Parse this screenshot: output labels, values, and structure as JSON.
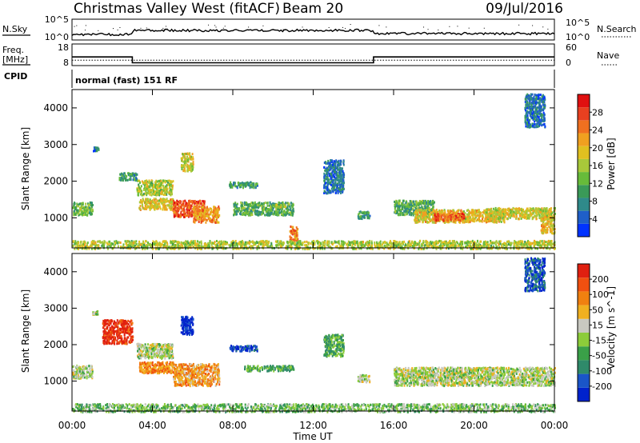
{
  "header": {
    "station": "Christmas Valley West (fitACF)",
    "beam": "Beam 20",
    "date": "09/Jul/2016"
  },
  "sky_panel": {
    "left_label": "N.Sky",
    "right_label": "N.Search",
    "left_ticks": [
      "10^5",
      "10^0"
    ],
    "right_ticks": [
      "10^5",
      "10^0"
    ]
  },
  "freq_panel": {
    "left_label_1": "Freq.",
    "left_label_2": "[MHz]",
    "right_label": "Nave",
    "left_ticks": [
      "18",
      "8"
    ],
    "right_ticks": [
      "60",
      "0"
    ],
    "freq_series": [
      {
        "start_hour": 0,
        "end_hour": 3.0,
        "value": 12.0
      },
      {
        "start_hour": 3.0,
        "end_hour": 15.0,
        "value": 9.3
      },
      {
        "start_hour": 15.0,
        "end_hour": 24.0,
        "value": 12.0
      }
    ],
    "nave_level": 15,
    "ylim_freq": [
      8,
      18
    ],
    "ylim_nave": [
      0,
      60
    ]
  },
  "cpid": {
    "label": "CPID",
    "mode": "normal (fast) 151 RF"
  },
  "chart_data": [
    {
      "type": "heatmap",
      "name": "Power",
      "ylabel": "Slant Range [km]",
      "xlabel": "Time UT",
      "xlim_hours": [
        0,
        24
      ],
      "ylim": [
        180,
        4500
      ],
      "x_tick_labels": [
        "00:00",
        "04:00",
        "08:00",
        "12:00",
        "16:00",
        "20:00",
        "00:00"
      ],
      "y_ticks": [
        1000,
        2000,
        3000,
        4000
      ],
      "colorbar": {
        "label": "Power [dB]",
        "ticks": [
          "28",
          "24",
          "20",
          "16",
          "12",
          "8",
          "4"
        ],
        "colors": [
          "#0033ff",
          "#1f5fc8",
          "#2f8a8a",
          "#3a9a58",
          "#67bb3a",
          "#a8c83a",
          "#e0c020",
          "#f0a020",
          "#f07020",
          "#e84020",
          "#e01010"
        ]
      },
      "regions": [
        {
          "t": [
            0.0,
            1.0
          ],
          "r": [
            1100,
            1450
          ],
          "level": 0.4
        },
        {
          "t": [
            1.0,
            1.3
          ],
          "r": [
            2850,
            2950
          ],
          "level": 0.2
        },
        {
          "t": [
            2.3,
            3.2
          ],
          "r": [
            2050,
            2250
          ],
          "level": 0.3
        },
        {
          "t": [
            3.2,
            5.0
          ],
          "r": [
            1650,
            2050
          ],
          "level": 0.5
        },
        {
          "t": [
            3.3,
            5.0
          ],
          "r": [
            1250,
            1550
          ],
          "level": 0.6
        },
        {
          "t": [
            5.0,
            6.6
          ],
          "r": [
            1050,
            1500
          ],
          "level": 0.85
        },
        {
          "t": [
            6.0,
            7.3
          ],
          "r": [
            900,
            1350
          ],
          "level": 0.7
        },
        {
          "t": [
            5.4,
            6.0
          ],
          "r": [
            2300,
            2800
          ],
          "level": 0.55
        },
        {
          "t": [
            7.8,
            9.2
          ],
          "r": [
            1850,
            2000
          ],
          "level": 0.3
        },
        {
          "t": [
            8.0,
            11.0
          ],
          "r": [
            1100,
            1450
          ],
          "level": 0.35
        },
        {
          "t": [
            9.8,
            10.6
          ],
          "r": [
            1300,
            1400
          ],
          "level": 0.5
        },
        {
          "t": [
            10.8,
            11.2
          ],
          "r": [
            380,
            800
          ],
          "level": 0.75
        },
        {
          "t": [
            14.2,
            14.8
          ],
          "r": [
            1000,
            1200
          ],
          "level": 0.3
        },
        {
          "t": [
            12.5,
            13.5
          ],
          "r": [
            1700,
            2600
          ],
          "level": 0.2
        },
        {
          "t": [
            16.0,
            18.0
          ],
          "r": [
            1100,
            1500
          ],
          "level": 0.35
        },
        {
          "t": [
            17.0,
            21.5
          ],
          "r": [
            900,
            1250
          ],
          "level": 0.6
        },
        {
          "t": [
            18.0,
            19.5
          ],
          "r": [
            950,
            1150
          ],
          "level": 0.8
        },
        {
          "t": [
            20.5,
            24.0
          ],
          "r": [
            1000,
            1300
          ],
          "level": 0.55
        },
        {
          "t": [
            22.5,
            23.5
          ],
          "r": [
            3500,
            4400
          ],
          "level": 0.2
        },
        {
          "t": [
            23.3,
            24.0
          ],
          "r": [
            600,
            1100
          ],
          "level": 0.6
        },
        {
          "t": [
            0.0,
            24.0
          ],
          "r": [
            180,
            400
          ],
          "level": 0.5
        }
      ]
    },
    {
      "type": "heatmap",
      "name": "Velocity",
      "ylabel": "Slant Range [km]",
      "xlabel": "Time UT",
      "xlim_hours": [
        0,
        24
      ],
      "ylim": [
        180,
        4500
      ],
      "x_tick_labels": [
        "00:00",
        "04:00",
        "08:00",
        "12:00",
        "16:00",
        "20:00",
        "00:00"
      ],
      "y_ticks": [
        1000,
        2000,
        3000,
        4000
      ],
      "colorbar": {
        "label": "Velocity [m s^-1]",
        "ticks": [
          "200",
          "100",
          "50",
          "15",
          "-15",
          "-50",
          "-100",
          "-200"
        ],
        "colors": [
          "#0022cc",
          "#1a55c8",
          "#2f8a6a",
          "#3aa048",
          "#8ccc3a",
          "#c8c8c0",
          "#f0b020",
          "#f08010",
          "#f05010",
          "#e02010"
        ]
      },
      "regions": [
        {
          "t": [
            0.0,
            1.0
          ],
          "r": [
            1100,
            1450
          ],
          "level": 0.5
        },
        {
          "t": [
            1.0,
            1.3
          ],
          "r": [
            2850,
            2950
          ],
          "level": 0.5
        },
        {
          "t": [
            1.5,
            3.0
          ],
          "r": [
            2050,
            2700
          ],
          "level": 0.93
        },
        {
          "t": [
            3.2,
            5.0
          ],
          "r": [
            1650,
            2050
          ],
          "level": 0.5
        },
        {
          "t": [
            3.3,
            5.0
          ],
          "r": [
            1250,
            1550
          ],
          "level": 0.75
        },
        {
          "t": [
            5.0,
            7.3
          ],
          "r": [
            900,
            1500
          ],
          "level": 0.7
        },
        {
          "t": [
            5.4,
            6.0
          ],
          "r": [
            2300,
            2800
          ],
          "level": 0.05
        },
        {
          "t": [
            7.8,
            9.2
          ],
          "r": [
            1850,
            2000
          ],
          "level": 0.1
        },
        {
          "t": [
            8.5,
            11.0
          ],
          "r": [
            1300,
            1450
          ],
          "level": 0.35
        },
        {
          "t": [
            12.5,
            13.5
          ],
          "r": [
            1700,
            2300
          ],
          "level": 0.35
        },
        {
          "t": [
            14.2,
            14.8
          ],
          "r": [
            1000,
            1200
          ],
          "level": 0.5
        },
        {
          "t": [
            16.0,
            24.0
          ],
          "r": [
            900,
            1400
          ],
          "level": 0.5
        },
        {
          "t": [
            22.5,
            23.5
          ],
          "r": [
            3500,
            4400
          ],
          "level": 0.15
        },
        {
          "t": [
            0.0,
            24.0
          ],
          "r": [
            180,
            400
          ],
          "level": 0.42
        }
      ]
    }
  ]
}
